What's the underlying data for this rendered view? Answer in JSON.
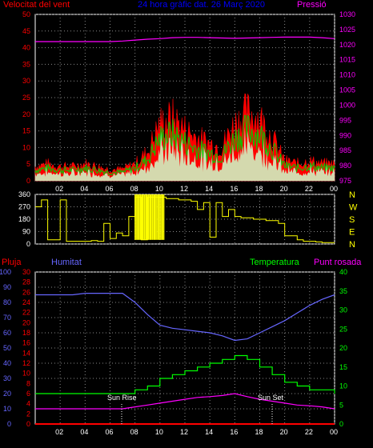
{
  "header": {
    "wind_title": "Velocitat del vent",
    "center_title": "24 hora gràfic dat. 26 Març 2020",
    "pressure_title": "Pressió"
  },
  "labels": {
    "rain": "Pluja",
    "humidity": "Humitat",
    "temperature": "Temperatura",
    "dew_point": "Punt rosada",
    "sun_rise": "Sun Rise",
    "sun_set": "Sun Set"
  },
  "colors": {
    "wind": "#ff0000",
    "gust": "#00cc00",
    "avg": "#ffffff",
    "pressure": "#ff00ff",
    "direction": "#ffff00",
    "rain": "#ff0000",
    "humidity": "#6666ff",
    "temperature": "#00ff00",
    "dew_point": "#ff00ff"
  },
  "x_ticks": [
    "02",
    "04",
    "06",
    "08",
    "10",
    "12",
    "14",
    "16",
    "18",
    "20",
    "22",
    "00"
  ],
  "chart_data": [
    {
      "type": "area",
      "title": "Velocitat del vent",
      "y_left_ticks": [
        0,
        5,
        10,
        15,
        20,
        25,
        30,
        35,
        40,
        45,
        50
      ],
      "y_right_ticks": [
        975,
        980,
        985,
        990,
        995,
        1000,
        1005,
        1010,
        1015,
        1020,
        1025,
        1030
      ],
      "ylim_left": [
        0,
        50
      ],
      "ylim_right": [
        975,
        1030
      ],
      "x": [
        0,
        1,
        2,
        3,
        4,
        5,
        6,
        7,
        8,
        9,
        10,
        11,
        12,
        13,
        14,
        15,
        16,
        17,
        18,
        19,
        20,
        21,
        22,
        23,
        24
      ],
      "series": [
        {
          "name": "Velocitat del vent",
          "axis": "left",
          "values": [
            5,
            6,
            5,
            5,
            6,
            5,
            4,
            4,
            6,
            10,
            20,
            22,
            18,
            15,
            13,
            12,
            20,
            24,
            22,
            15,
            7,
            6,
            7,
            6,
            6
          ]
        },
        {
          "name": "Pressió",
          "axis": "right",
          "values": [
            1021,
            1021,
            1021,
            1021,
            1021,
            1021,
            1021,
            1021.2,
            1021.5,
            1021.8,
            1022,
            1022.3,
            1022.4,
            1022.4,
            1022.3,
            1022.2,
            1022.1,
            1022.2,
            1022.3,
            1022.4,
            1022.5,
            1022.5,
            1022.5,
            1022.3,
            1022
          ]
        }
      ]
    },
    {
      "type": "line",
      "title": "",
      "y_left_ticks": [
        0,
        90,
        180,
        270,
        360
      ],
      "y_right_labels": [
        "N",
        "W",
        "S",
        "E",
        "N"
      ],
      "ylim": [
        0,
        360
      ],
      "x": [
        0,
        0.5,
        1,
        1.5,
        2,
        2.5,
        3,
        3.5,
        4,
        4.5,
        5,
        5.5,
        6,
        6.5,
        7,
        7.5,
        8,
        8.5,
        9,
        9.5,
        10,
        10.5,
        11,
        11.5,
        12,
        12.5,
        13,
        13.5,
        14,
        14.5,
        15,
        15.5,
        16,
        16.5,
        17,
        17.5,
        18,
        18.5,
        19,
        19.5,
        20,
        20.5,
        21,
        21.5,
        22,
        22.5,
        23,
        23.5,
        24
      ],
      "series": [
        {
          "name": "",
          "values": [
            270,
            320,
            30,
            30,
            320,
            20,
            20,
            20,
            20,
            25,
            20,
            150,
            40,
            80,
            60,
            200,
            340,
            30,
            340,
            340,
            340,
            330,
            330,
            320,
            320,
            310,
            250,
            300,
            50,
            300,
            200,
            250,
            200,
            190,
            190,
            180,
            180,
            170,
            170,
            150,
            60,
            60,
            30,
            20,
            20,
            15,
            10,
            10,
            10
          ]
        }
      ]
    },
    {
      "type": "line",
      "title": "",
      "y_ticks_rain": [
        0,
        10,
        20,
        30,
        40,
        50,
        60,
        70,
        80,
        90,
        100
      ],
      "y_ticks_humidity": [
        0,
        2,
        4,
        6,
        8,
        10,
        12,
        14,
        16,
        18,
        20,
        22,
        24,
        26,
        28,
        30
      ],
      "y_ticks_temperature": [
        0,
        5,
        10,
        15,
        20,
        25,
        30,
        35,
        40
      ],
      "ylim_temperature": [
        0,
        40
      ],
      "x": [
        0,
        1,
        2,
        3,
        4,
        5,
        6,
        7,
        8,
        9,
        10,
        11,
        12,
        13,
        14,
        15,
        16,
        17,
        18,
        19,
        20,
        21,
        22,
        23,
        24
      ],
      "series": [
        {
          "name": "Pluja",
          "axis": "rain",
          "values": [
            0,
            0,
            0,
            0,
            0,
            0,
            0,
            0,
            0,
            0,
            0,
            0,
            0,
            0,
            0,
            0,
            0,
            0,
            0,
            0,
            0,
            0,
            0,
            0,
            0
          ]
        },
        {
          "name": "Humitat",
          "axis": "rain",
          "values": [
            85,
            85,
            85,
            85,
            86,
            86,
            86,
            86,
            80,
            72,
            65,
            63,
            62,
            61,
            60,
            58,
            55,
            56,
            60,
            64,
            68,
            73,
            78,
            82,
            85
          ]
        },
        {
          "name": "Temperatura",
          "axis": "temperature",
          "values": [
            8,
            8,
            8,
            8,
            8,
            8,
            8,
            8,
            9,
            10,
            12,
            13,
            14,
            15,
            16,
            17,
            18,
            17,
            15,
            13,
            11,
            10,
            9,
            9,
            8
          ]
        },
        {
          "name": "Punt rosada",
          "axis": "temperature",
          "values": [
            4,
            4,
            4,
            4,
            4,
            4,
            4,
            4,
            4.5,
            5,
            5.5,
            6,
            6.5,
            7,
            7.2,
            7.5,
            8,
            7.2,
            6.5,
            6,
            5.5,
            5,
            4.8,
            4.5,
            4
          ]
        }
      ]
    }
  ]
}
